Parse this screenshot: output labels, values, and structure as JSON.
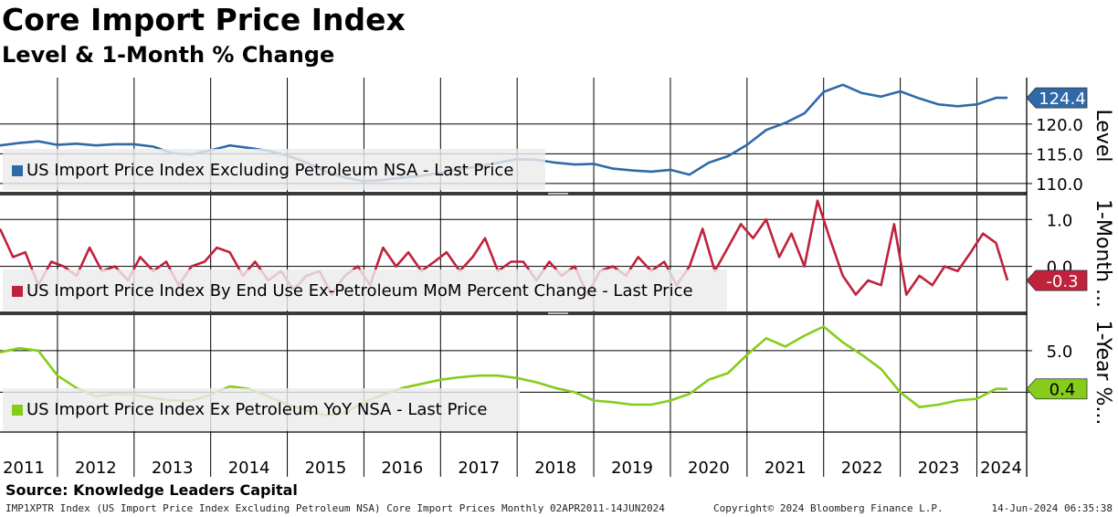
{
  "header": {
    "title": "Core Import Price Index",
    "subtitle": "Level & 1-Month % Change"
  },
  "footer": {
    "source": "Source: Knowledge Leaders Capital",
    "left": "IMP1XPTR Index (US Import Price Index Excluding Petroleum NSA) Core Import Prices  Monthly 02APR2011-14JUN2024",
    "center": "Copyright© 2024 Bloomberg Finance L.P.",
    "right": "14-Jun-2024 06:35:38"
  },
  "colors": {
    "level": "#2f6aa8",
    "mom": "#c0213b",
    "yoy": "#86cc1a",
    "grid": "#000000"
  },
  "chart_data": [
    {
      "type": "line",
      "panel": "level",
      "ylabel": "Level",
      "ylim": [
        108.3,
        127.8
      ],
      "yticks": [
        110.0,
        115.0,
        120.0
      ],
      "legend": "US Import Price Index Excluding Petroleum NSA - Last Price",
      "last_value_label": "124.4",
      "x": [
        2011.25,
        2011.5,
        2011.75,
        2012.0,
        2012.25,
        2012.5,
        2012.75,
        2013.0,
        2013.25,
        2013.5,
        2013.75,
        2014.0,
        2014.25,
        2014.5,
        2014.75,
        2015.0,
        2015.25,
        2015.5,
        2015.75,
        2016.0,
        2016.25,
        2016.5,
        2016.75,
        2017.0,
        2017.25,
        2017.5,
        2017.75,
        2018.0,
        2018.25,
        2018.5,
        2018.75,
        2019.0,
        2019.25,
        2019.5,
        2019.75,
        2020.0,
        2020.25,
        2020.5,
        2020.75,
        2021.0,
        2021.25,
        2021.5,
        2021.75,
        2022.0,
        2022.25,
        2022.5,
        2022.75,
        2023.0,
        2023.25,
        2023.5,
        2023.75,
        2024.0,
        2024.25,
        2024.4
      ],
      "values": [
        116.4,
        116.8,
        117.1,
        116.5,
        116.7,
        116.4,
        116.6,
        116.6,
        116.2,
        115.1,
        114.9,
        115.6,
        116.4,
        116.0,
        115.5,
        114.7,
        113.5,
        112.0,
        111.0,
        110.4,
        110.6,
        111.0,
        111.3,
        111.8,
        112.4,
        112.9,
        113.5,
        114.1,
        114.0,
        113.5,
        113.2,
        113.3,
        112.5,
        112.2,
        112.0,
        112.3,
        111.5,
        113.5,
        114.6,
        116.5,
        119.0,
        120.2,
        121.8,
        125.4,
        126.6,
        125.2,
        124.6,
        125.5,
        124.3,
        123.3,
        123.0,
        123.3,
        124.4,
        124.4
      ]
    },
    {
      "type": "line",
      "panel": "mom",
      "ylabel": "1-Month ...",
      "ylim": [
        -1.0,
        1.55
      ],
      "yticks": [
        0.0,
        1.0
      ],
      "legend": "US Import Price Index By End Use Ex-Petroleum MoM Percent Change - Last Price",
      "last_value_label": "-0.3",
      "x": [
        2011.25,
        2011.42,
        2011.58,
        2011.75,
        2011.92,
        2012.08,
        2012.25,
        2012.42,
        2012.58,
        2012.75,
        2012.92,
        2013.08,
        2013.25,
        2013.42,
        2013.58,
        2013.75,
        2013.92,
        2014.08,
        2014.25,
        2014.42,
        2014.58,
        2014.75,
        2014.92,
        2015.08,
        2015.25,
        2015.42,
        2015.58,
        2015.75,
        2015.92,
        2016.08,
        2016.25,
        2016.42,
        2016.58,
        2016.75,
        2016.92,
        2017.08,
        2017.25,
        2017.42,
        2017.58,
        2017.75,
        2017.92,
        2018.08,
        2018.25,
        2018.42,
        2018.58,
        2018.75,
        2018.92,
        2019.08,
        2019.25,
        2019.42,
        2019.58,
        2019.75,
        2019.92,
        2020.08,
        2020.25,
        2020.42,
        2020.58,
        2020.75,
        2020.92,
        2021.08,
        2021.25,
        2021.42,
        2021.58,
        2021.75,
        2021.92,
        2022.08,
        2022.25,
        2022.42,
        2022.58,
        2022.75,
        2022.92,
        2023.08,
        2023.25,
        2023.42,
        2023.58,
        2023.75,
        2023.92,
        2024.08,
        2024.25,
        2024.4
      ],
      "values": [
        0.8,
        0.2,
        0.3,
        -0.4,
        0.1,
        0.0,
        -0.2,
        0.4,
        -0.1,
        0.0,
        -0.3,
        0.2,
        -0.1,
        0.1,
        -0.4,
        0.0,
        0.1,
        0.4,
        0.3,
        -0.2,
        0.1,
        -0.3,
        -0.1,
        -0.5,
        -0.2,
        -0.1,
        -0.6,
        -0.2,
        0.0,
        -0.4,
        0.4,
        0.0,
        0.3,
        -0.1,
        0.1,
        0.3,
        -0.1,
        0.2,
        0.6,
        -0.1,
        0.1,
        0.1,
        -0.3,
        0.1,
        -0.2,
        0.0,
        -0.6,
        -0.1,
        0.0,
        -0.2,
        0.2,
        -0.1,
        0.1,
        -0.4,
        0.0,
        0.8,
        -0.1,
        0.4,
        0.9,
        0.6,
        1.0,
        0.2,
        0.7,
        0.0,
        1.4,
        0.6,
        -0.2,
        -0.6,
        -0.3,
        -0.4,
        0.9,
        -0.6,
        -0.2,
        -0.4,
        0.0,
        -0.1,
        0.3,
        0.7,
        0.5,
        -0.3
      ]
    },
    {
      "type": "line",
      "panel": "yoy",
      "ylabel": "1-Year %...",
      "ylim": [
        -4.8,
        9.5
      ],
      "yticks": [
        0.0,
        5.0
      ],
      "legend": "US Import Price Index Ex Petroleum YoY NSA - Last Price",
      "last_value_label": "0.4",
      "x": [
        2011.25,
        2011.5,
        2011.75,
        2012.0,
        2012.25,
        2012.5,
        2012.75,
        2013.0,
        2013.25,
        2013.5,
        2013.75,
        2014.0,
        2014.25,
        2014.5,
        2014.75,
        2015.0,
        2015.25,
        2015.5,
        2015.75,
        2016.0,
        2016.25,
        2016.5,
        2016.75,
        2017.0,
        2017.25,
        2017.5,
        2017.75,
        2018.0,
        2018.25,
        2018.5,
        2018.75,
        2019.0,
        2019.25,
        2019.5,
        2019.75,
        2020.0,
        2020.25,
        2020.5,
        2020.75,
        2021.0,
        2021.25,
        2021.5,
        2021.75,
        2022.0,
        2022.25,
        2022.5,
        2022.75,
        2023.0,
        2023.25,
        2023.5,
        2023.75,
        2024.0,
        2024.25,
        2024.4
      ],
      "values": [
        4.8,
        5.3,
        5.0,
        2.0,
        0.5,
        -0.5,
        -0.2,
        -0.3,
        -0.7,
        -1.0,
        -1.0,
        -0.3,
        0.7,
        0.4,
        -0.5,
        -1.5,
        -2.2,
        -2.8,
        -2.5,
        -1.2,
        -0.3,
        0.5,
        1.0,
        1.5,
        1.8,
        2.0,
        2.0,
        1.7,
        1.2,
        0.5,
        0.0,
        -1.0,
        -1.2,
        -1.5,
        -1.5,
        -1.0,
        -0.2,
        1.5,
        2.3,
        4.5,
        6.5,
        5.5,
        6.8,
        7.9,
        6.0,
        4.5,
        2.8,
        0.0,
        -1.8,
        -1.5,
        -1.0,
        -0.8,
        0.4,
        0.4
      ]
    }
  ],
  "x_axis": {
    "years": [
      "2011",
      "2012",
      "2013",
      "2014",
      "2015",
      "2016",
      "2017",
      "2018",
      "2019",
      "2020",
      "2021",
      "2022",
      "2023",
      "2024"
    ]
  }
}
